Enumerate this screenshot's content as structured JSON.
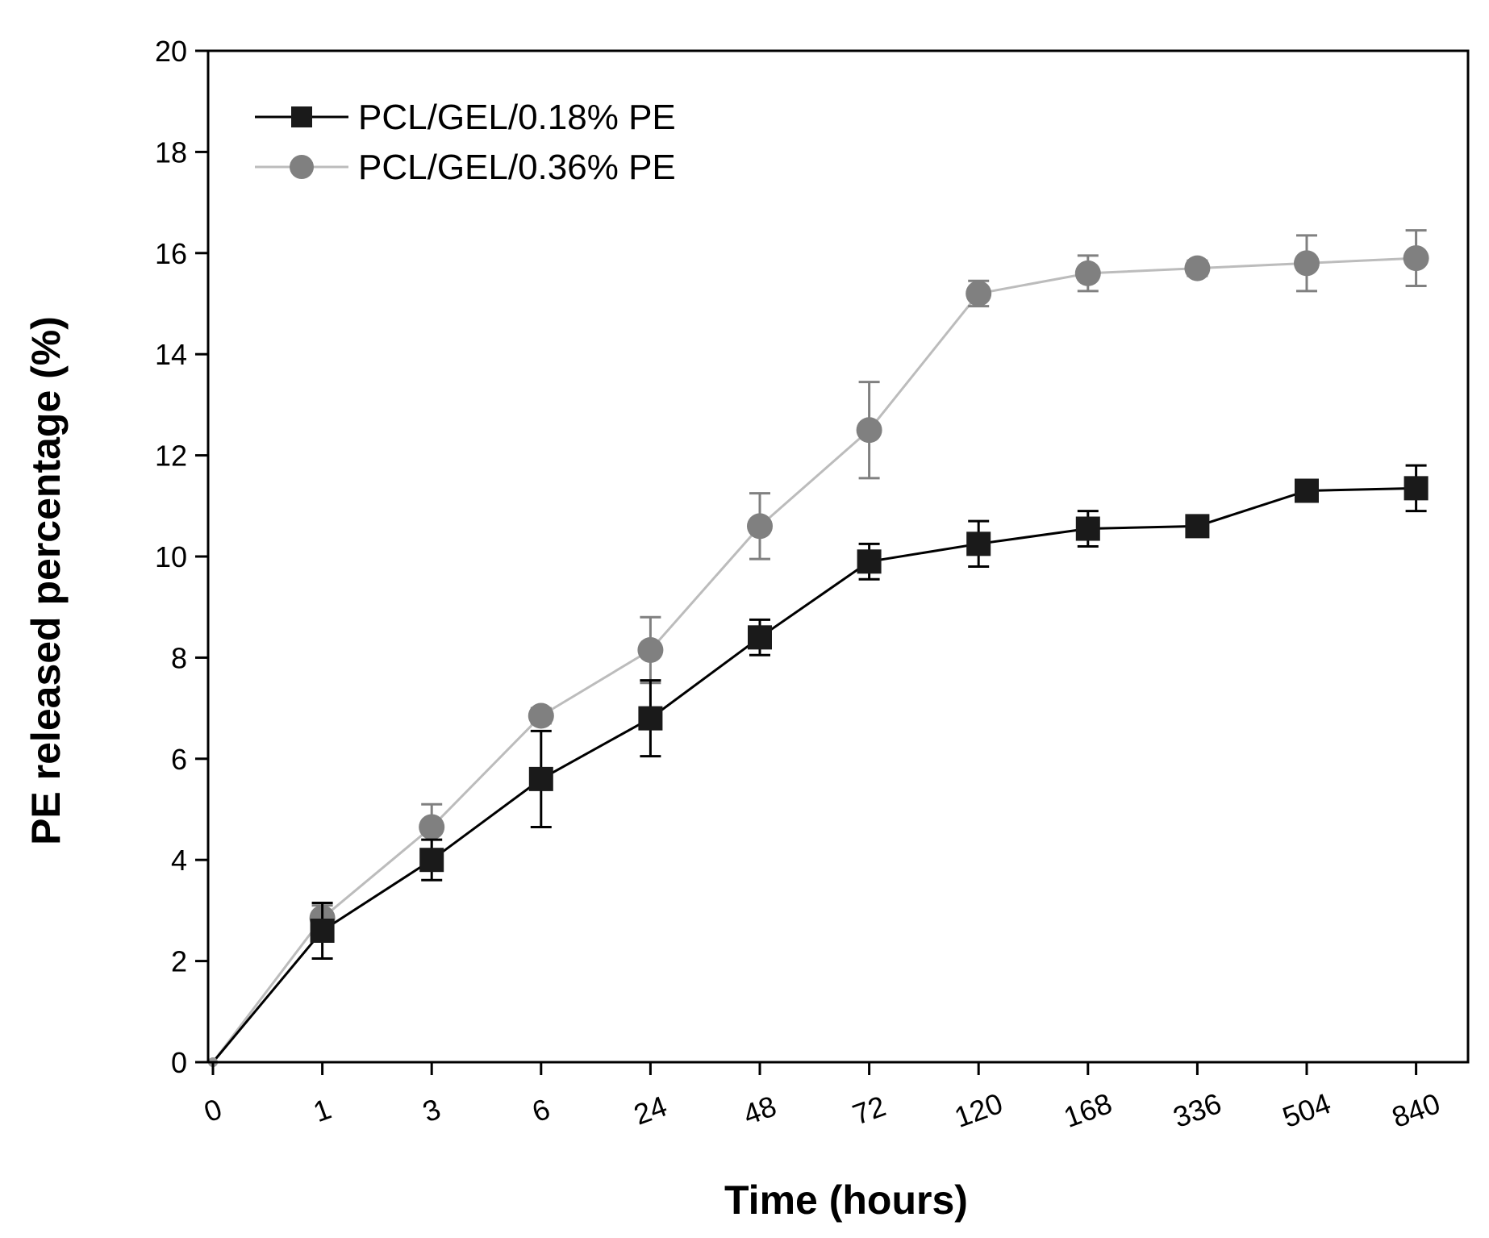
{
  "chart_data": {
    "type": "line",
    "title": "",
    "xlabel": "Time (hours)",
    "ylabel": "PE released percentage (%)",
    "categories": [
      "0",
      "1",
      "3",
      "6",
      "24",
      "48",
      "72",
      "120",
      "168",
      "336",
      "504",
      "840"
    ],
    "ylim": [
      0,
      20
    ],
    "yticks": [
      0,
      2,
      4,
      6,
      8,
      10,
      12,
      14,
      16,
      18,
      20
    ],
    "grid": false,
    "legend_position": "top-left",
    "series": [
      {
        "name": "PCL/GEL/0.18% PE",
        "marker": "square",
        "color": "#1a1a1a",
        "line_color": "#000000",
        "values": [
          0.0,
          2.6,
          4.0,
          5.6,
          6.8,
          8.4,
          9.9,
          10.25,
          10.55,
          10.6,
          11.3,
          11.35
        ],
        "errors": [
          0.0,
          0.55,
          0.4,
          0.95,
          0.75,
          0.35,
          0.35,
          0.45,
          0.35,
          0.15,
          0.15,
          0.45
        ]
      },
      {
        "name": "PCL/GEL/0.36% PE",
        "marker": "circle",
        "color": "#808080",
        "line_color": "#bcbcbc",
        "values": [
          0.0,
          2.85,
          4.65,
          6.85,
          8.15,
          10.6,
          12.5,
          15.2,
          15.6,
          15.7,
          15.8,
          15.9
        ],
        "errors": [
          0.0,
          0.25,
          0.45,
          0.15,
          0.65,
          0.65,
          0.95,
          0.25,
          0.35,
          0.15,
          0.55,
          0.55
        ]
      }
    ]
  }
}
